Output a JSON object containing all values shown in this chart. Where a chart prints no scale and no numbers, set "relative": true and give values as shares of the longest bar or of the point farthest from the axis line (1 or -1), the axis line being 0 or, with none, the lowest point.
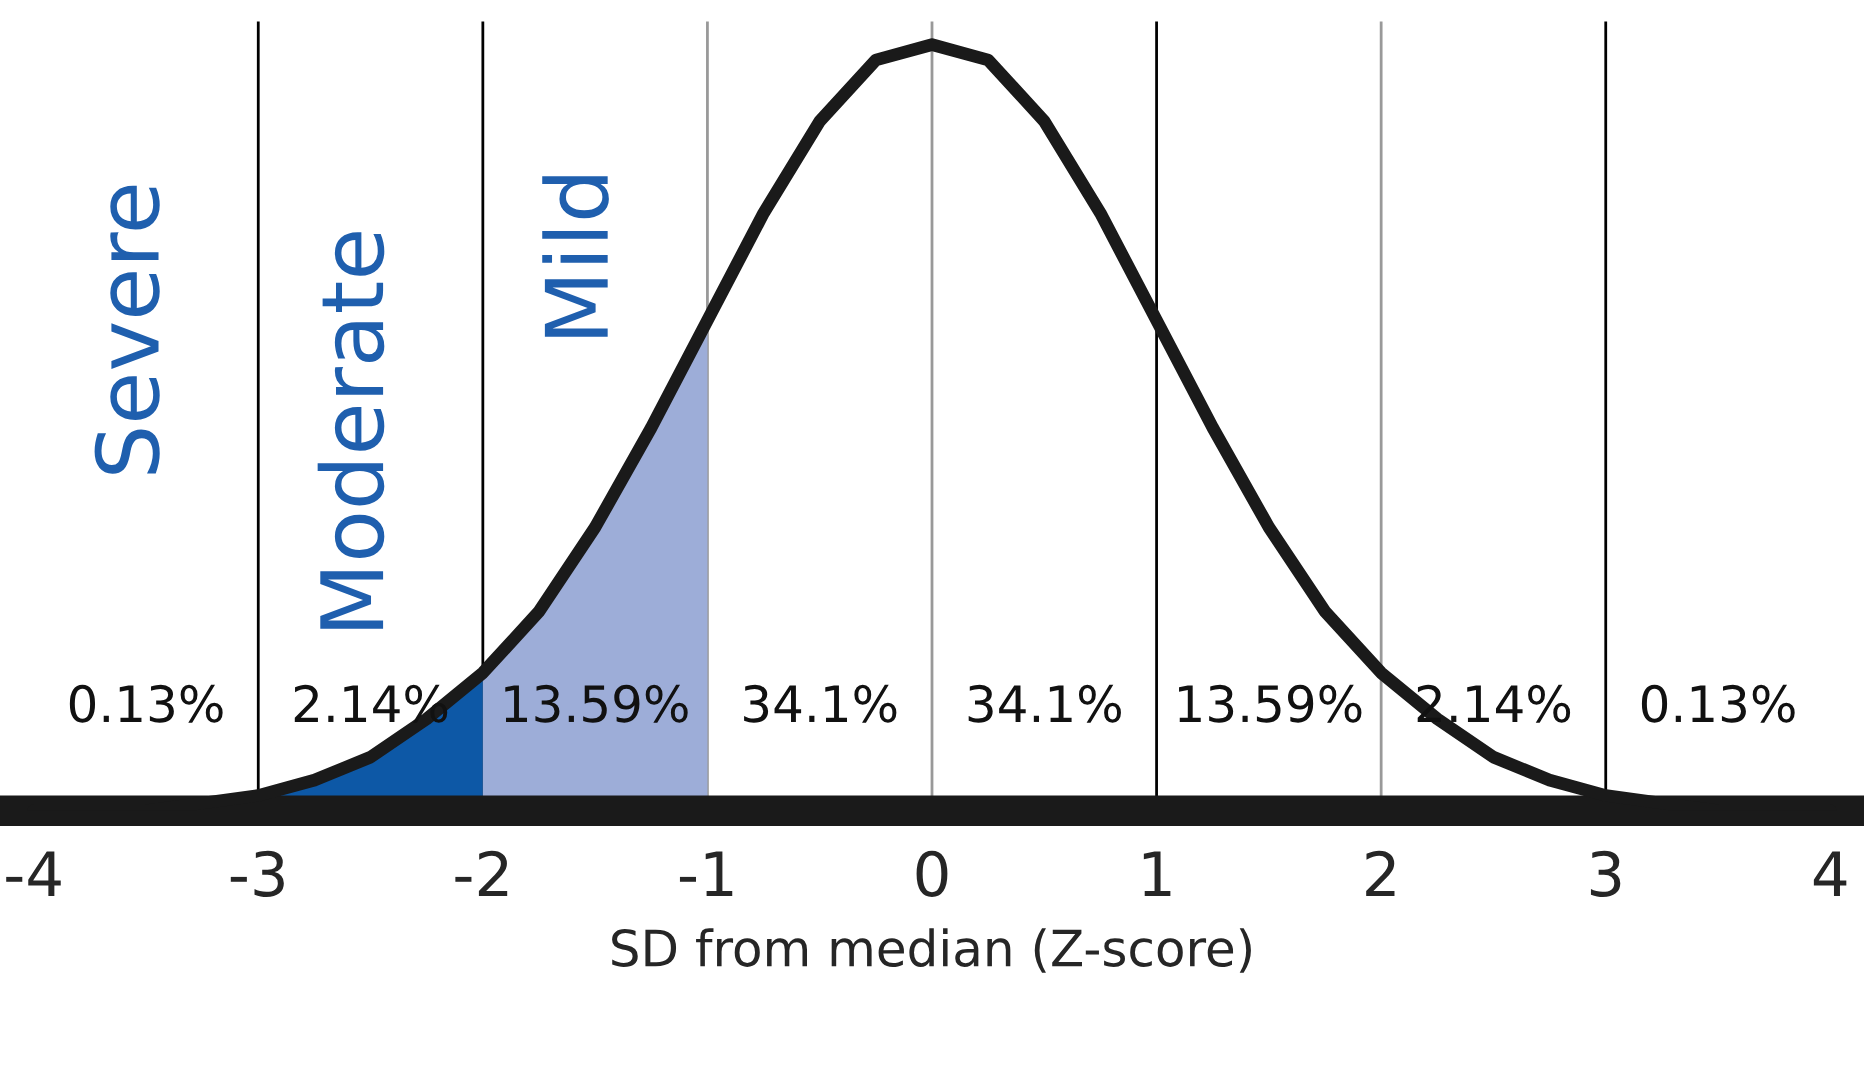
{
  "chart_data": {
    "type": "line",
    "relative": true,
    "xlabel": "SD from median (Z-score)",
    "x": [
      -4,
      -3.75,
      -3.5,
      -3.25,
      -3,
      -2.75,
      -2.5,
      -2.25,
      -2,
      -1.75,
      -1.5,
      -1.25,
      -1,
      -0.75,
      -0.5,
      -0.25,
      0,
      0.25,
      0.5,
      0.75,
      1,
      1.25,
      1.5,
      1.75,
      2,
      2.25,
      2.5,
      2.75,
      3,
      3.25,
      3.5,
      3.75,
      4
    ],
    "series": [
      {
        "color": "#1a1a1a",
        "values": [
          0.0,
          0.0,
          0.0,
          0.01,
          0.02,
          0.04,
          0.07,
          0.12,
          0.18,
          0.26,
          0.37,
          0.5,
          0.64,
          0.78,
          0.9,
          0.98,
          1,
          0.98,
          0.9,
          0.78,
          0.64,
          0.5,
          0.37,
          0.26,
          0.18,
          0.12,
          0.07,
          0.04,
          0.02,
          0.01,
          0.0,
          0.0,
          0.0
        ]
      },
      {
        "type": "area",
        "color": "#0d58a6",
        "x": [
          -3,
          -2.75,
          -2.5,
          -2.25,
          -2
        ],
        "values": [
          0.02,
          0.04,
          0.07,
          0.12,
          0.18
        ]
      },
      {
        "type": "area",
        "color": "#9dadd8",
        "x": [
          -2,
          -1.75,
          -1.5,
          -1.25,
          -1
        ],
        "values": [
          0.18,
          0.26,
          0.37,
          0.5,
          0.64
        ]
      }
    ],
    "xlim": [
      -4.15,
      4.15
    ],
    "xticks": [
      -4,
      -3,
      -2,
      -1,
      0,
      1,
      2,
      3,
      4
    ],
    "ref_lines": [
      {
        "axis": "x",
        "value": -3,
        "color": "#000000"
      },
      {
        "axis": "x",
        "value": -2,
        "color": "#000000"
      },
      {
        "axis": "x",
        "value": -1,
        "color": "#999999"
      },
      {
        "axis": "x",
        "value": 0,
        "color": "#999999"
      },
      {
        "axis": "x",
        "value": 1,
        "color": "#000000"
      },
      {
        "axis": "x",
        "value": 2,
        "color": "#999999"
      },
      {
        "axis": "x",
        "value": 3,
        "color": "#000000"
      }
    ],
    "annotations": [
      "0.13%",
      "2.14%",
      "13.59%",
      "34.1%",
      "34.1%",
      "13.59%",
      "2.14%",
      "0.13%",
      "Severe",
      "Moderate",
      "Mild"
    ],
    "grid": false,
    "legend": false,
    "marker": "none",
    "line_style": "solid"
  }
}
